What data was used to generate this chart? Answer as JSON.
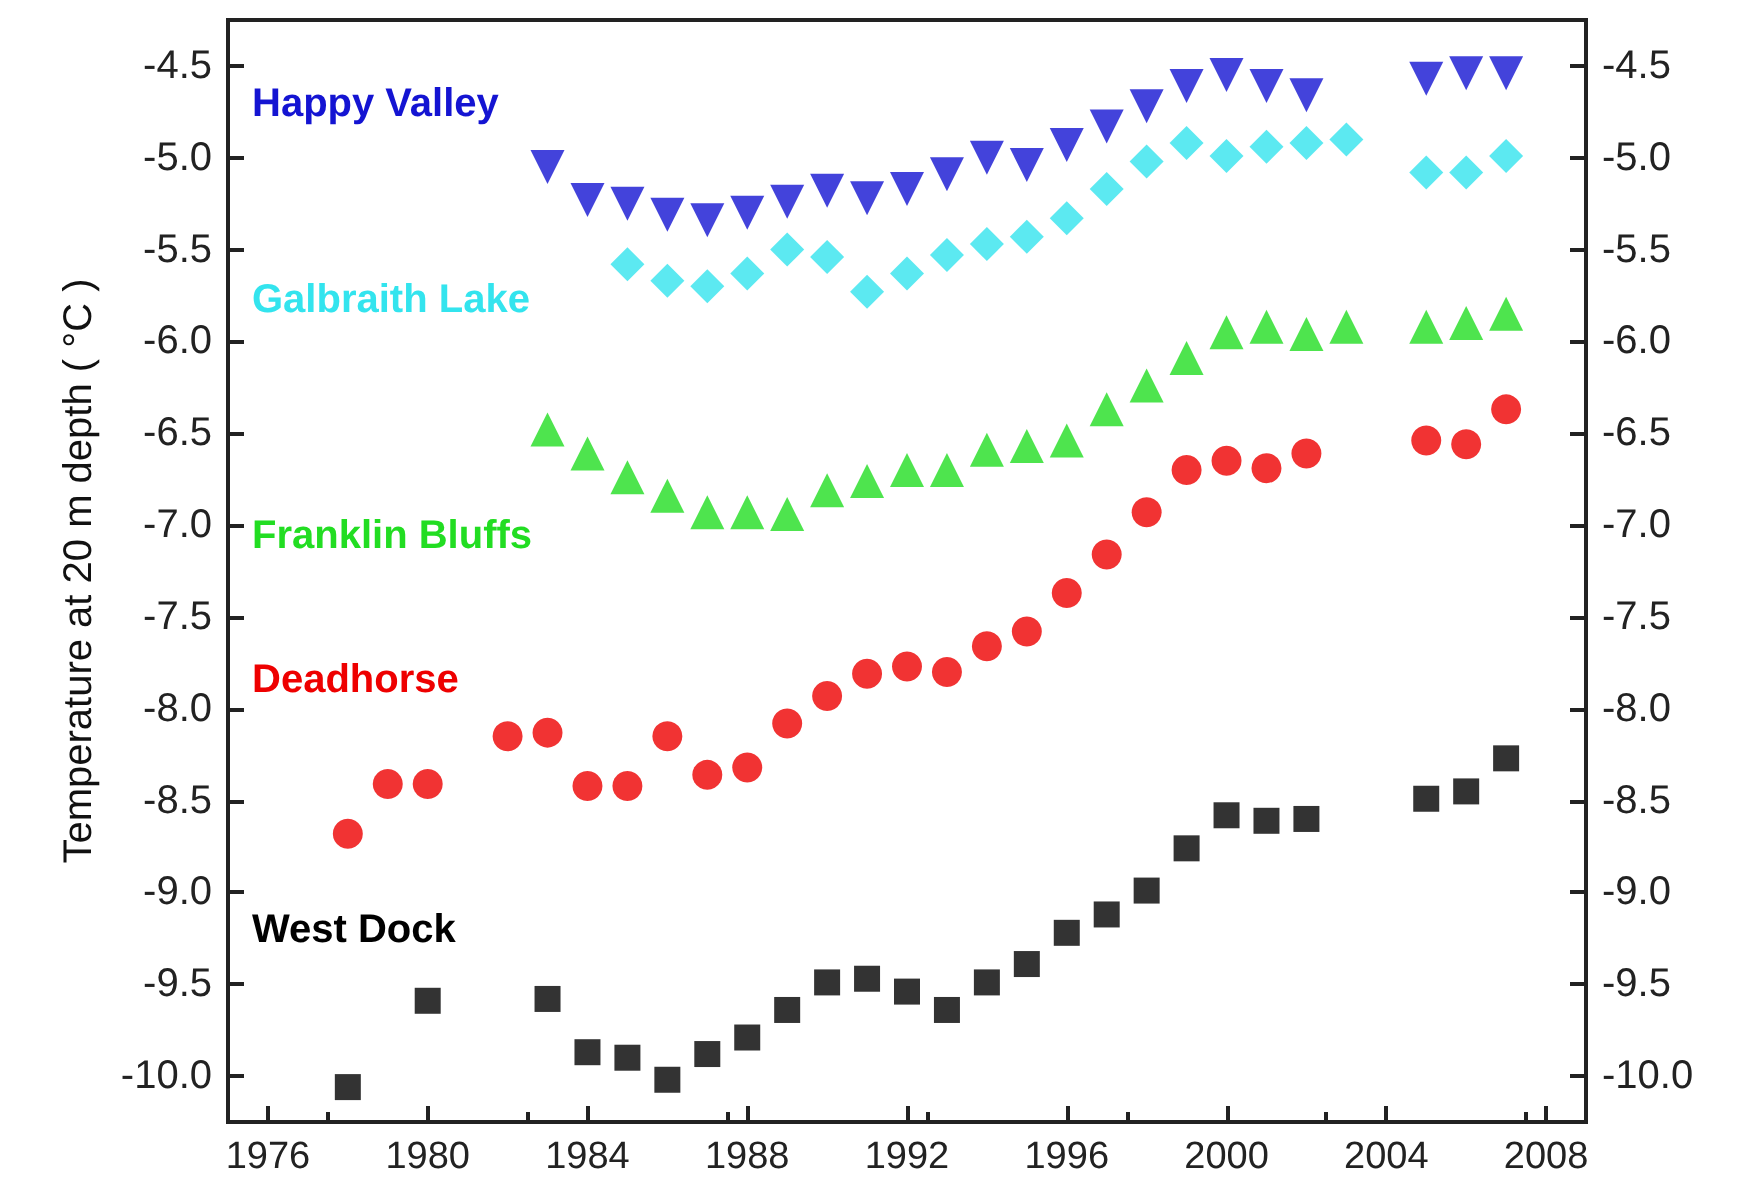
{
  "chart_data": {
    "type": "scatter",
    "ylabel": "Temperature at 20 m depth ( °C )",
    "xlim": [
      1975,
      2009
    ],
    "xticks": [
      1976,
      1980,
      1984,
      1988,
      1992,
      1996,
      2000,
      2004,
      2008
    ],
    "ylim": [
      -10.25,
      -4.25
    ],
    "yticks": [
      {
        "value": -10,
        "label": "-10.0"
      },
      -9.5,
      {
        "value": -9,
        "label": "-9.0"
      },
      -8.5,
      {
        "value": -8,
        "label": "-8.0"
      },
      -7.5,
      {
        "value": -7,
        "label": "-7.0"
      },
      -6.5,
      {
        "value": -6,
        "label": "-6.0"
      },
      -5.5,
      {
        "value": -5,
        "label": "-5.0"
      },
      -4.5
    ],
    "y2lim": [
      -10.25,
      -4.25
    ],
    "y2ticks": [
      {
        "value": -10,
        "label": "-10.0"
      },
      -9.5,
      {
        "value": -9,
        "label": "-9.0"
      },
      -8.5,
      {
        "value": -8,
        "label": "-8.0"
      },
      -7.5,
      {
        "value": -7,
        "label": "-7.0"
      },
      -6.5,
      {
        "value": -6,
        "label": "-6.0"
      },
      -5.5,
      {
        "value": -5,
        "label": "-5.0"
      },
      -4.5
    ],
    "grid": false,
    "legend": false,
    "series": [
      {
        "name": "Happy Valley",
        "color": "#1414d2",
        "marker": "triangle-down",
        "x": [
          1983,
          1984,
          1985,
          1986,
          1987,
          1988,
          1989,
          1990,
          1991,
          1992,
          1993,
          1994,
          1995,
          1996,
          1997,
          1998,
          1999,
          2000,
          2001,
          2002,
          2005,
          2006,
          2007
        ],
        "values": [
          -5.05,
          -5.23,
          -5.25,
          -5.31,
          -5.34,
          -5.3,
          -5.24,
          -5.18,
          -5.22,
          -5.17,
          -5.09,
          -5.0,
          -5.04,
          -4.93,
          -4.83,
          -4.72,
          -4.61,
          -4.55,
          -4.61,
          -4.66,
          -4.57,
          -4.54,
          -4.54
        ]
      },
      {
        "name": "Galbraith Lake",
        "color": "#33e4ee",
        "marker": "diamond",
        "x": [
          1985,
          1986,
          1987,
          1988,
          1989,
          1990,
          1991,
          1992,
          1993,
          1994,
          1995,
          1996,
          1997,
          1998,
          1999,
          2000,
          2001,
          2002,
          2003,
          2005,
          2006,
          2007
        ],
        "values": [
          -5.58,
          -5.67,
          -5.7,
          -5.63,
          -5.5,
          -5.54,
          -5.73,
          -5.63,
          -5.53,
          -5.47,
          -5.43,
          -5.33,
          -5.17,
          -5.02,
          -4.92,
          -4.99,
          -4.94,
          -4.92,
          -4.9,
          -5.08,
          -5.08,
          -4.99
        ]
      },
      {
        "name": "Franklin Bluffs",
        "color": "#22dd22",
        "marker": "triangle",
        "x": [
          1983,
          1984,
          1985,
          1986,
          1987,
          1988,
          1989,
          1990,
          1991,
          1992,
          1993,
          1994,
          1995,
          1996,
          1997,
          1998,
          1999,
          2000,
          2001,
          2002,
          2003,
          2005,
          2006,
          2007
        ],
        "values": [
          -6.48,
          -6.61,
          -6.74,
          -6.84,
          -6.93,
          -6.93,
          -6.94,
          -6.81,
          -6.76,
          -6.7,
          -6.7,
          -6.59,
          -6.57,
          -6.54,
          -6.37,
          -6.24,
          -6.09,
          -5.95,
          -5.92,
          -5.96,
          -5.92,
          -5.92,
          -5.9,
          -5.85
        ]
      },
      {
        "name": "Deadhorse",
        "color": "#ee0000",
        "marker": "circle",
        "x": [
          1978,
          1979,
          1980,
          1982,
          1983,
          1984,
          1985,
          1986,
          1987,
          1988,
          1989,
          1990,
          1991,
          1992,
          1993,
          1994,
          1995,
          1996,
          1997,
          1998,
          1999,
          2000,
          2001,
          2002,
          2005,
          2006,
          2007
        ],
        "values": [
          -8.68,
          -8.41,
          -8.41,
          -8.15,
          -8.13,
          -8.42,
          -8.42,
          -8.15,
          -8.36,
          -8.32,
          -8.08,
          -7.93,
          -7.81,
          -7.77,
          -7.8,
          -7.66,
          -7.58,
          -7.37,
          -7.16,
          -6.93,
          -6.7,
          -6.65,
          -6.69,
          -6.61,
          -6.54,
          -6.56,
          -6.37
        ]
      },
      {
        "name": "West Dock",
        "color": "#000000",
        "marker": "square",
        "x": [
          1978,
          1980,
          1983,
          1984,
          1985,
          1986,
          1987,
          1988,
          1989,
          1990,
          1991,
          1992,
          1993,
          1994,
          1995,
          1996,
          1997,
          1998,
          1999,
          2000,
          2001,
          2002,
          2005,
          2006,
          2007
        ],
        "values": [
          -10.06,
          -9.59,
          -9.58,
          -9.87,
          -9.9,
          -10.02,
          -9.88,
          -9.79,
          -9.64,
          -9.49,
          -9.47,
          -9.54,
          -9.64,
          -9.49,
          -9.39,
          -9.22,
          -9.12,
          -8.99,
          -8.76,
          -8.58,
          -8.61,
          -8.6,
          -8.49,
          -8.45,
          -8.27
        ]
      }
    ]
  }
}
